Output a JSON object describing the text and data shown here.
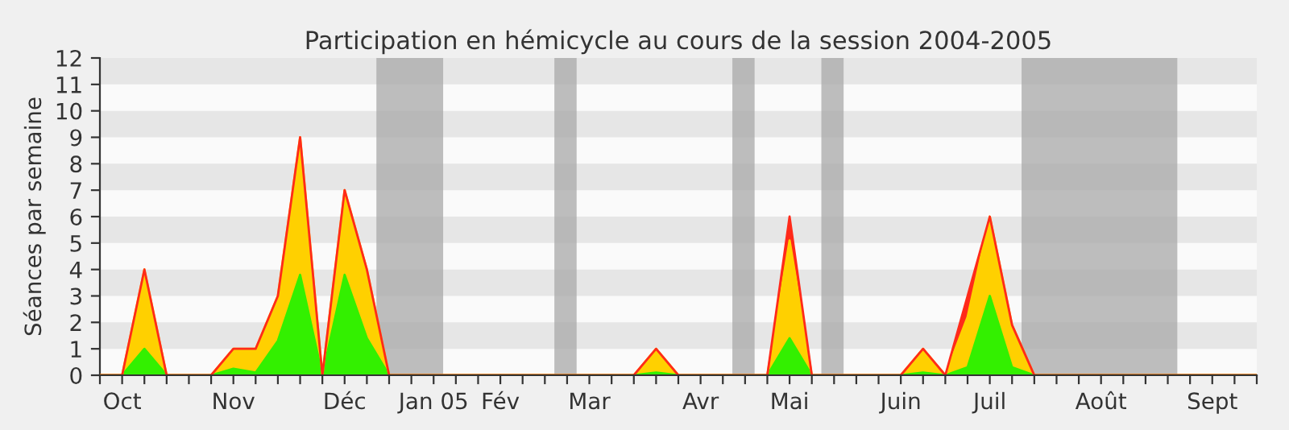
{
  "chart_data": {
    "type": "area",
    "stacked": true,
    "title": "Participation en hémicycle au cours de la session 2004-2005",
    "ylabel": "Séances par semaine",
    "x": [
      "2004-09-28",
      "2004-10-05",
      "2004-10-12",
      "2004-10-19",
      "2004-10-26",
      "2004-11-02",
      "2004-11-09",
      "2004-11-16",
      "2004-11-23",
      "2004-11-30",
      "2004-12-07",
      "2004-12-14",
      "2004-12-21",
      "2004-12-28",
      "2005-01-04",
      "2005-01-11",
      "2005-01-18",
      "2005-01-25",
      "2005-02-01",
      "2005-02-08",
      "2005-02-15",
      "2005-02-22",
      "2005-03-01",
      "2005-03-08",
      "2005-03-15",
      "2005-03-22",
      "2005-03-29",
      "2005-04-05",
      "2005-04-12",
      "2005-04-19",
      "2005-04-26",
      "2005-05-03",
      "2005-05-10",
      "2005-05-17",
      "2005-05-24",
      "2005-05-31",
      "2005-06-07",
      "2005-06-14",
      "2005-06-21",
      "2005-06-28",
      "2005-07-05",
      "2005-07-12",
      "2005-07-19",
      "2005-07-26",
      "2005-08-02",
      "2005-08-09",
      "2005-08-16",
      "2005-08-23",
      "2005-08-30",
      "2005-09-06",
      "2005-09-13",
      "2005-09-20",
      "2005-09-27"
    ],
    "series": [
      {
        "color": "#33f000",
        "values": [
          0,
          0,
          1,
          0,
          0,
          0,
          0.25,
          0.1,
          1.3,
          3.8,
          0,
          3.8,
          1.4,
          0,
          0,
          0,
          0,
          0,
          0,
          0,
          0,
          0,
          0,
          0,
          0,
          0.1,
          0,
          0,
          0,
          0,
          0,
          1.4,
          0,
          0,
          0,
          0,
          0,
          0.1,
          0,
          0.3,
          3,
          0.3,
          0,
          0,
          0,
          0,
          0,
          0,
          0,
          0,
          0,
          0,
          0
        ]
      },
      {
        "color": "#ffd000",
        "values": [
          0,
          0,
          3,
          0,
          0,
          0,
          0.75,
          0.9,
          1.7,
          5.2,
          0,
          3.2,
          2.6,
          0,
          0,
          0,
          0,
          0,
          0,
          0,
          0,
          0,
          0,
          0,
          0,
          0.9,
          0,
          0,
          0,
          0,
          0,
          3.7,
          0,
          0,
          0,
          0,
          0,
          0.9,
          0,
          1.9,
          3,
          1.6,
          0,
          0,
          0,
          0,
          0,
          0,
          0,
          0,
          0,
          0,
          0
        ]
      },
      {
        "color": "#ff2a1a",
        "values": [
          null,
          null,
          null,
          null,
          null,
          null,
          null,
          null,
          null,
          null,
          null,
          null,
          null,
          null,
          null,
          null,
          null,
          null,
          null,
          null,
          null,
          null,
          null,
          null,
          null,
          null,
          null,
          null,
          null,
          null,
          0,
          0.9,
          0,
          null,
          null,
          null,
          null,
          null,
          0,
          0.8,
          0,
          null,
          null,
          null,
          null,
          null,
          null,
          null,
          null,
          null,
          null,
          null,
          null
        ]
      }
    ],
    "xlim": [
      "2004-09-28",
      "2005-09-27"
    ],
    "xticks": [
      {
        "value": "2004-09-28",
        "label": null
      },
      {
        "value": "2004-10-05",
        "label": "Oct"
      },
      {
        "value": "2004-10-12",
        "label": null
      },
      {
        "value": "2004-10-19",
        "label": null
      },
      {
        "value": "2004-10-26",
        "label": null
      },
      {
        "value": "2004-11-02",
        "label": null
      },
      {
        "value": "2004-11-09",
        "label": "Nov"
      },
      {
        "value": "2004-11-16",
        "label": null
      },
      {
        "value": "2004-11-23",
        "label": null
      },
      {
        "value": "2004-11-30",
        "label": null
      },
      {
        "value": "2004-12-07",
        "label": null
      },
      {
        "value": "2004-12-14",
        "label": "Déc"
      },
      {
        "value": "2004-12-21",
        "label": null
      },
      {
        "value": "2004-12-28",
        "label": null
      },
      {
        "value": "2005-01-04",
        "label": null
      },
      {
        "value": "2005-01-11",
        "label": "Jan 05"
      },
      {
        "value": "2005-01-18",
        "label": null
      },
      {
        "value": "2005-01-25",
        "label": null
      },
      {
        "value": "2005-02-01",
        "label": "Fév"
      },
      {
        "value": "2005-02-08",
        "label": null
      },
      {
        "value": "2005-02-15",
        "label": null
      },
      {
        "value": "2005-02-22",
        "label": null
      },
      {
        "value": "2005-03-01",
        "label": "Mar"
      },
      {
        "value": "2005-03-08",
        "label": null
      },
      {
        "value": "2005-03-15",
        "label": null
      },
      {
        "value": "2005-03-22",
        "label": null
      },
      {
        "value": "2005-03-29",
        "label": null
      },
      {
        "value": "2005-04-05",
        "label": "Avr"
      },
      {
        "value": "2005-04-12",
        "label": null
      },
      {
        "value": "2005-04-19",
        "label": null
      },
      {
        "value": "2005-04-26",
        "label": null
      },
      {
        "value": "2005-05-03",
        "label": "Mai"
      },
      {
        "value": "2005-05-10",
        "label": null
      },
      {
        "value": "2005-05-17",
        "label": null
      },
      {
        "value": "2005-05-24",
        "label": null
      },
      {
        "value": "2005-05-31",
        "label": null
      },
      {
        "value": "2005-06-07",
        "label": "Juin"
      },
      {
        "value": "2005-06-14",
        "label": null
      },
      {
        "value": "2005-06-21",
        "label": null
      },
      {
        "value": "2005-06-28",
        "label": null
      },
      {
        "value": "2005-07-05",
        "label": "Juil"
      },
      {
        "value": "2005-07-12",
        "label": null
      },
      {
        "value": "2005-07-19",
        "label": null
      },
      {
        "value": "2005-07-26",
        "label": null
      },
      {
        "value": "2005-08-02",
        "label": null
      },
      {
        "value": "2005-08-09",
        "label": "Août"
      },
      {
        "value": "2005-08-16",
        "label": null
      },
      {
        "value": "2005-08-23",
        "label": null
      },
      {
        "value": "2005-08-30",
        "label": null
      },
      {
        "value": "2005-09-06",
        "label": null
      },
      {
        "value": "2005-09-13",
        "label": "Sept"
      },
      {
        "value": "2005-09-20",
        "label": null
      },
      {
        "value": "2005-09-27",
        "label": null
      }
    ],
    "ylim": [
      0,
      12
    ],
    "yticks": [
      0,
      1,
      2,
      3,
      4,
      5,
      6,
      7,
      8,
      9,
      10,
      11,
      12
    ],
    "bands": [
      {
        "axis": "y",
        "from": 1,
        "to": 2,
        "color": "#e6e6e6"
      },
      {
        "axis": "y",
        "from": 3,
        "to": 4,
        "color": "#e6e6e6"
      },
      {
        "axis": "y",
        "from": 5,
        "to": 6,
        "color": "#e6e6e6"
      },
      {
        "axis": "y",
        "from": 7,
        "to": 8,
        "color": "#e6e6e6"
      },
      {
        "axis": "y",
        "from": 9,
        "to": 10,
        "color": "#e6e6e6"
      },
      {
        "axis": "y",
        "from": 11,
        "to": 12,
        "color": "#e6e6e6"
      },
      {
        "axis": "x",
        "from": "2004-12-24",
        "to": "2005-01-14",
        "color": "#a8a8a8"
      },
      {
        "axis": "x",
        "from": "2005-02-18",
        "to": "2005-02-25",
        "color": "#a8a8a8"
      },
      {
        "axis": "x",
        "from": "2005-04-15",
        "to": "2005-04-22",
        "color": "#a8a8a8"
      },
      {
        "axis": "x",
        "from": "2005-05-13",
        "to": "2005-05-20",
        "color": "#a8a8a8"
      },
      {
        "axis": "x",
        "from": "2005-07-15",
        "to": "2005-09-02",
        "color": "#a8a8a8"
      }
    ],
    "grid": false,
    "legend": false
  }
}
